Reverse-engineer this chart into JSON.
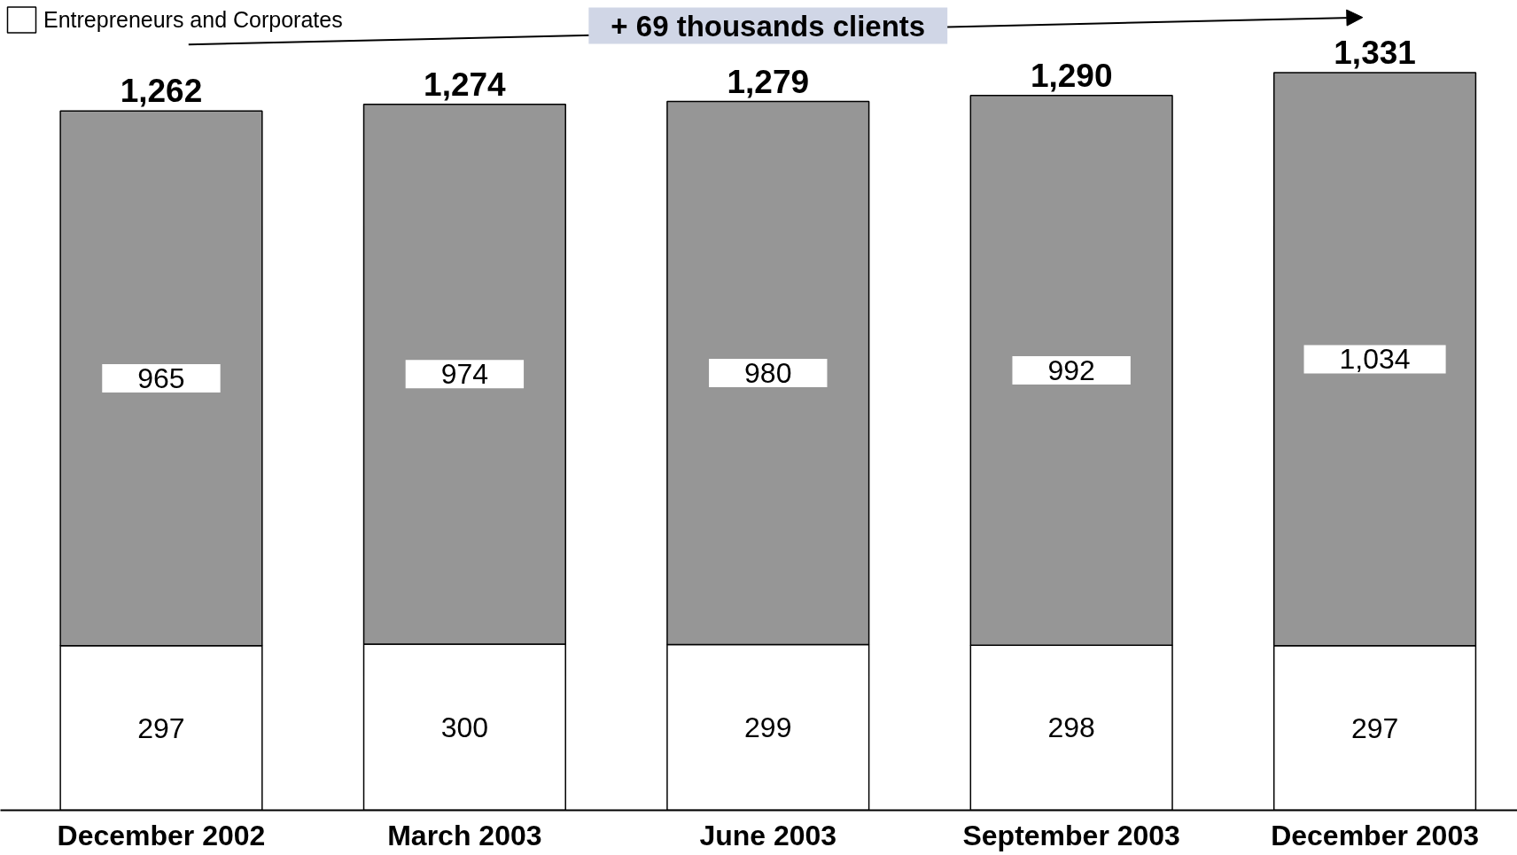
{
  "chart_data": {
    "type": "bar",
    "stacked": true,
    "tick_labels": "x",
    "legend": "top left",
    "grid": false,
    "categories": [
      "December 2002",
      "March 2003",
      "June 2003",
      "September 2003",
      "December 2003"
    ],
    "series": [
      {
        "name": "Entrepreneurs and Corporates",
        "color": "#ffffff",
        "values": [
          297,
          300,
          299,
          298,
          297
        ],
        "value_labels": [
          "297",
          "300",
          "299",
          "298",
          "297"
        ]
      },
      {
        "color": "#969696",
        "values": [
          965,
          974,
          980,
          992,
          1034
        ],
        "value_labels": [
          "965",
          "974",
          "980",
          "992",
          "1,034"
        ]
      }
    ],
    "totals": [
      "1,262",
      "1,274",
      "1,279",
      "1,290",
      "1,331"
    ],
    "annotations": [
      "+ 69 thousands clients"
    ]
  }
}
